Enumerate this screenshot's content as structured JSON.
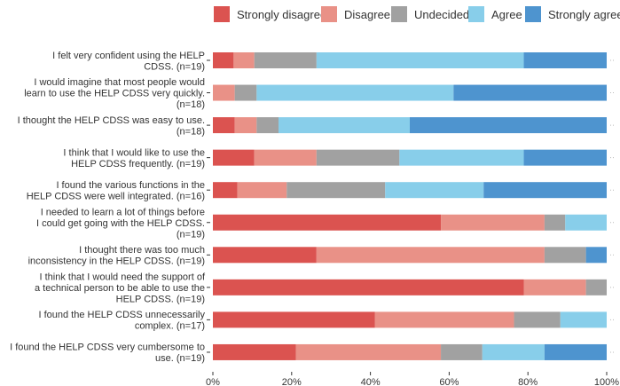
{
  "chart_data": {
    "type": "bar",
    "orientation": "horizontal",
    "stacked": true,
    "normalized_percent": true,
    "title": "",
    "xlabel": "",
    "ylabel": "",
    "xlim": [
      0,
      100
    ],
    "x_ticks": [
      "0%",
      "20%",
      "40%",
      "60%",
      "80%",
      "100%"
    ],
    "legend_position": "top",
    "legend": [
      "Strongly disagree",
      "Disagree",
      "Undecided",
      "Agree",
      "Strongly agree"
    ],
    "colors": [
      "#db5350",
      "#e99187",
      "#a1a1a1",
      "#88ceea",
      "#4e94cf"
    ],
    "categories": [
      {
        "lines": [
          "I felt very confident using the HELP",
          "CDSS. (n=19)"
        ],
        "n": 19,
        "counts": [
          1,
          1,
          3,
          10,
          4
        ]
      },
      {
        "lines": [
          "I would imagine that most people would",
          "learn to use the HELP CDSS very quickly.",
          "(n=18)"
        ],
        "n": 18,
        "counts": [
          0,
          1,
          1,
          9,
          7
        ]
      },
      {
        "lines": [
          "I thought the HELP CDSS was easy to use.",
          "(n=18)"
        ],
        "n": 18,
        "counts": [
          1,
          1,
          1,
          6,
          9
        ]
      },
      {
        "lines": [
          "I think that I would like to use the",
          "HELP CDSS frequently. (n=19)"
        ],
        "n": 19,
        "counts": [
          2,
          3,
          4,
          6,
          4
        ]
      },
      {
        "lines": [
          "I found the various functions in the",
          "HELP CDSS were well integrated. (n=16)"
        ],
        "n": 16,
        "counts": [
          1,
          2,
          4,
          4,
          5
        ]
      },
      {
        "lines": [
          "I needed to learn a lot of things before",
          "I could get going with the HELP CDSS.",
          "(n=19)"
        ],
        "n": 19,
        "counts": [
          11,
          5,
          1,
          2,
          0
        ]
      },
      {
        "lines": [
          "I thought there was too much",
          "inconsistency in the HELP CDSS. (n=19)"
        ],
        "n": 19,
        "counts": [
          5,
          11,
          2,
          0,
          1
        ]
      },
      {
        "lines": [
          "I think that I would need the support of",
          "a technical person to be able to use the",
          "HELP CDSS. (n=19)"
        ],
        "n": 19,
        "counts": [
          15,
          3,
          1,
          0,
          0
        ]
      },
      {
        "lines": [
          "I found the HELP CDSS unnecessarily",
          "complex. (n=17)"
        ],
        "n": 17,
        "counts": [
          7,
          6,
          2,
          2,
          0
        ]
      },
      {
        "lines": [
          "I found the HELP CDSS very cumbersome to",
          "use. (n=19)"
        ],
        "n": 19,
        "counts": [
          4,
          7,
          2,
          3,
          3
        ]
      }
    ]
  }
}
